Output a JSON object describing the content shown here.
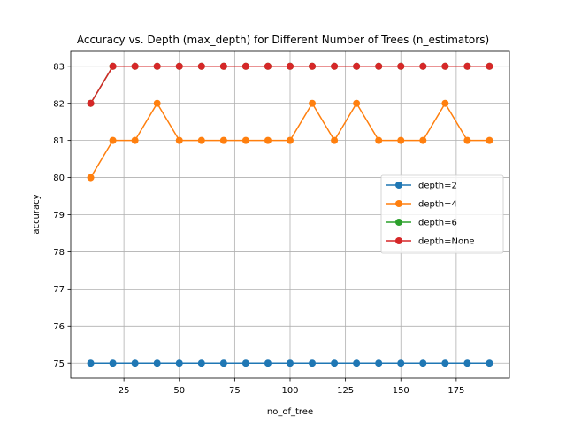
{
  "chart_data": {
    "type": "line",
    "title": "Accuracy vs. Depth (max_depth) for Different Number of Trees (n_estimators)",
    "xlabel": "no_of_tree",
    "ylabel": "accuracy",
    "xlim": [
      1,
      199
    ],
    "ylim": [
      74.6,
      83.4
    ],
    "xticks": [
      25,
      50,
      75,
      100,
      125,
      150,
      175
    ],
    "yticks": [
      75,
      76,
      77,
      78,
      79,
      80,
      81,
      82,
      83
    ],
    "grid": true,
    "legend_position": "center-right",
    "x": [
      10,
      20,
      30,
      40,
      50,
      60,
      70,
      80,
      90,
      100,
      110,
      120,
      130,
      140,
      150,
      160,
      170,
      180,
      190
    ],
    "series": [
      {
        "name": "depth=2",
        "color": "#1f77b4",
        "marker": "circle",
        "values": [
          75,
          75,
          75,
          75,
          75,
          75,
          75,
          75,
          75,
          75,
          75,
          75,
          75,
          75,
          75,
          75,
          75,
          75,
          75
        ]
      },
      {
        "name": "depth=4",
        "color": "#ff7f0e",
        "marker": "circle",
        "values": [
          80,
          81,
          81,
          82,
          81,
          81,
          81,
          81,
          81,
          81,
          82,
          81,
          82,
          81,
          81,
          81,
          82,
          81,
          81
        ]
      },
      {
        "name": "depth=6",
        "color": "#2ca02c",
        "marker": "circle",
        "values": [
          82,
          83,
          83,
          83,
          83,
          83,
          83,
          83,
          83,
          83,
          83,
          83,
          83,
          83,
          83,
          83,
          83,
          83,
          83
        ]
      },
      {
        "name": "depth=None",
        "color": "#d62728",
        "marker": "circle",
        "values": [
          82,
          83,
          83,
          83,
          83,
          83,
          83,
          83,
          83,
          83,
          83,
          83,
          83,
          83,
          83,
          83,
          83,
          83,
          83
        ]
      }
    ]
  }
}
